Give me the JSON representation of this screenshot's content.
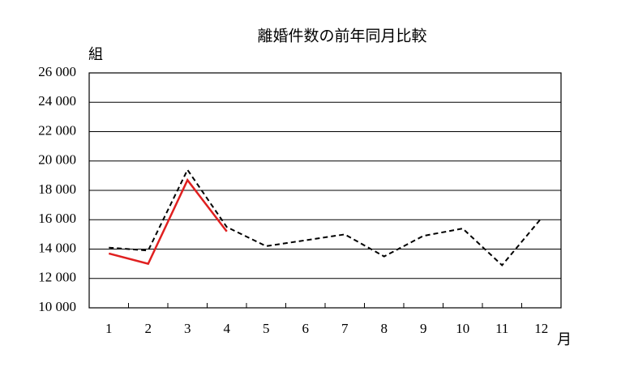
{
  "chart_data": {
    "type": "line",
    "title": "離婚件数の前年同月比較",
    "y_label": "組",
    "x_label": "月",
    "categories": [
      "1",
      "2",
      "3",
      "4",
      "5",
      "6",
      "7",
      "8",
      "9",
      "10",
      "11",
      "12"
    ],
    "series": [
      {
        "color": "#000000",
        "dash": true,
        "values": [
          14100,
          13900,
          19400,
          15500,
          14200,
          14600,
          15000,
          13500,
          14900,
          15400,
          12900,
          16100
        ]
      },
      {
        "color": "#e02020",
        "dash": false,
        "values": [
          13700,
          13000,
          18700,
          15200,
          null,
          null,
          null,
          null,
          null,
          null,
          null,
          null
        ]
      }
    ],
    "ylim": [
      10000,
      26000
    ],
    "yticks": [
      {
        "value": 10000,
        "label": "10 000"
      },
      {
        "value": 12000,
        "label": "12 000"
      },
      {
        "value": 14000,
        "label": "14 000"
      },
      {
        "value": 16000,
        "label": "16 000"
      },
      {
        "value": 18000,
        "label": "18 000"
      },
      {
        "value": 20000,
        "label": "20 000"
      },
      {
        "value": 22000,
        "label": "22 000"
      },
      {
        "value": 24000,
        "label": "24 000"
      },
      {
        "value": 26000,
        "label": "26 000"
      }
    ],
    "grid": true
  }
}
